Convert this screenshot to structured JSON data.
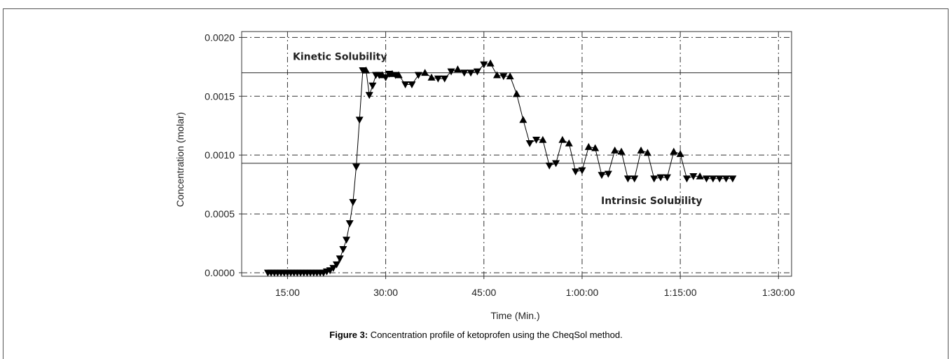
{
  "chart_data": {
    "type": "line",
    "xlabel": "Time (Min.)",
    "ylabel": "Concentration (molar)",
    "xlim": [
      8,
      92
    ],
    "ylim": [
      -3e-05,
      0.00205
    ],
    "xticks": [
      15,
      30,
      45,
      60,
      75,
      90
    ],
    "xtick_labels": [
      "15:00",
      "30:00",
      "45:00",
      "1:00:00",
      "1:15:00",
      "1:30:00"
    ],
    "yticks": [
      0.0,
      0.0005,
      0.001,
      0.0015,
      0.002
    ],
    "ytick_labels": [
      "0.0000",
      "0.0005",
      "0.0010",
      "0.0015",
      "0.0020"
    ],
    "grid": true,
    "series": [
      {
        "marker": "triangle",
        "color": "#000000",
        "x": [
          12.0,
          12.5,
          13.0,
          13.5,
          14.0,
          14.5,
          15.0,
          15.5,
          16.0,
          16.5,
          17.0,
          17.5,
          18.0,
          18.5,
          19.0,
          19.5,
          20.0,
          20.5,
          21.0,
          21.5,
          22.0,
          22.5,
          23.0,
          23.5,
          24.0,
          24.5,
          25.0,
          25.5,
          26.0,
          26.5,
          27.0,
          27.5,
          28.0,
          28.5,
          29.0,
          29.5,
          30.0,
          30.5,
          31.0,
          31.5,
          32.0,
          33.0,
          34.0,
          35.0,
          36.0,
          37.0,
          38.0,
          39.0,
          40.0,
          41.0,
          42.0,
          43.0,
          44.0,
          45.0,
          46.0,
          47.0,
          48.0,
          49.0,
          50.0,
          51.0,
          52.0,
          53.0,
          54.0,
          55.0,
          56.0,
          57.0,
          58.0,
          59.0,
          60.0,
          61.0,
          62.0,
          63.0,
          64.0,
          65.0,
          66.0,
          67.0,
          68.0,
          69.0,
          70.0,
          71.0,
          72.0,
          73.0,
          74.0,
          75.0,
          76.0,
          77.0,
          78.0,
          79.0,
          80.0,
          81.0,
          82.0,
          83.0
        ],
        "y": [
          0.0,
          0.0,
          0.0,
          0.0,
          0.0,
          0.0,
          0.0,
          0.0,
          0.0,
          0.0,
          0.0,
          0.0,
          0.0,
          0.0,
          0.0,
          0.0,
          0.0,
          0.0,
          1e-05,
          2e-05,
          4e-05,
          7e-05,
          0.00012,
          0.0002,
          0.00028,
          0.00042,
          0.0006,
          0.0009,
          0.0013,
          0.00172,
          0.00172,
          0.00151,
          0.00159,
          0.00168,
          0.00168,
          0.00168,
          0.00166,
          0.00169,
          0.00169,
          0.00168,
          0.00168,
          0.0016,
          0.0016,
          0.00168,
          0.0017,
          0.00166,
          0.00165,
          0.00165,
          0.00171,
          0.00173,
          0.0017,
          0.0017,
          0.00171,
          0.00177,
          0.00178,
          0.00168,
          0.00167,
          0.00167,
          0.00152,
          0.0013,
          0.0011,
          0.00113,
          0.00113,
          0.00091,
          0.00093,
          0.00113,
          0.0011,
          0.00086,
          0.00087,
          0.00107,
          0.00106,
          0.00083,
          0.00084,
          0.00104,
          0.00103,
          0.0008,
          0.0008,
          0.00104,
          0.00102,
          0.0008,
          0.00081,
          0.00081,
          0.00103,
          0.00101,
          0.0008,
          0.00082,
          0.00082,
          0.0008,
          0.0008,
          0.0008,
          0.0008,
          0.0008
        ]
      }
    ],
    "reference_lines": [
      {
        "y": 0.0017,
        "label": "Kinetic Solubility"
      },
      {
        "y": 0.00093,
        "label": "Intrinsic Solubility"
      }
    ]
  },
  "caption": {
    "bold": "Figure 3:",
    "text": " Concentration profile of ketoprofen using the CheqSol method."
  }
}
